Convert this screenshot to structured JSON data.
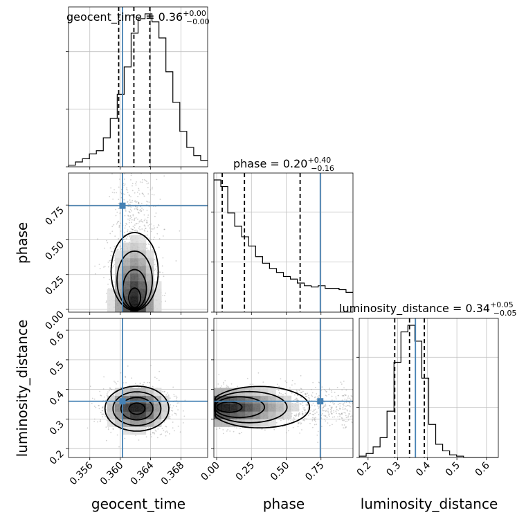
{
  "colors": {
    "truth": "#4682b4",
    "hist": "#000000",
    "grid": "#c0c0c0",
    "density": "#000000",
    "scatter": "#9a9a9a"
  },
  "chart_data": {
    "type": "corner",
    "grid": true,
    "parameters": [
      "geocent_time",
      "phase",
      "luminosity_distance"
    ],
    "titles": {
      "geocent_time": {
        "label": "geocent_time",
        "value": "0.36",
        "plus": "+0.00",
        "minus": "−0.00"
      },
      "phase": {
        "label": "phase",
        "value": "0.20",
        "plus": "+0.40",
        "minus": "−0.16"
      },
      "luminosity_distance": {
        "label": "luminosity_distance",
        "value": "0.34",
        "plus": "+0.05",
        "minus": "−0.05"
      }
    },
    "truths": {
      "geocent_time": 0.3603,
      "phase": 0.745,
      "luminosity_distance": 0.36
    },
    "quantiles": {
      "geocent_time": [
        0.3598,
        0.3618,
        0.3639
      ],
      "phase": [
        0.04,
        0.2,
        0.6
      ],
      "luminosity_distance": [
        0.29,
        0.34,
        0.39
      ]
    },
    "ranges": {
      "geocent_time": [
        0.3532,
        0.3715
      ],
      "phase": [
        -0.02,
        0.98
      ],
      "luminosity_distance": [
        0.17,
        0.64
      ]
    },
    "ticks": {
      "geocent_time": [
        0.356,
        0.36,
        0.364,
        0.368
      ],
      "phase": [
        0.0,
        0.25,
        0.5,
        0.75
      ],
      "luminosity_distance": [
        0.2,
        0.3,
        0.4,
        0.5,
        0.6
      ]
    },
    "tick_labels": {
      "geocent_time": [
        "0.356",
        "0.360",
        "0.364",
        "0.368"
      ],
      "phase": [
        "0.00",
        "0.25",
        "0.50",
        "0.75"
      ],
      "luminosity_distance": [
        "0.2",
        "0.3",
        "0.4",
        "0.5",
        "0.6"
      ]
    },
    "axis_labels": {
      "x": [
        "geocent_time",
        "phase",
        "luminosity_distance"
      ],
      "y": [
        "phase",
        "luminosity_distance"
      ]
    },
    "marginals": {
      "geocent_time": {
        "edges_start": 0.3532,
        "bin_width": 0.000915,
        "counts": [
          1,
          3,
          5,
          8,
          10,
          18,
          30,
          45,
          62,
          83,
          92,
          95,
          90,
          80,
          59,
          40,
          22,
          12,
          7,
          4
        ]
      },
      "phase": {
        "edges_start": -0.02,
        "bin_width": 0.05,
        "counts": [
          100,
          95,
          75,
          65,
          57,
          50,
          42,
          37,
          33,
          30,
          27,
          25,
          22,
          20,
          19,
          20,
          18,
          18,
          17,
          15
        ]
      },
      "luminosity_distance": {
        "edges_start": 0.17,
        "bin_width": 0.0235,
        "counts": [
          1,
          3,
          8,
          15,
          35,
          72,
          95,
          100,
          88,
          60,
          25,
          10,
          5,
          2,
          1,
          0,
          0,
          0,
          0,
          0
        ]
      }
    },
    "joint": [
      {
        "x": "geocent_time",
        "y": "phase",
        "x_center": 0.3619,
        "y_center": 0.02,
        "x_sd": 0.00155,
        "y_sd": 0.28,
        "note": "density concentrated at low phase, tail to phase 0.9"
      },
      {
        "x": "geocent_time",
        "y": "luminosity_distance",
        "x_center": 0.3622,
        "y_center": 0.335,
        "x_sd": 0.0021,
        "y_sd": 0.038
      },
      {
        "x": "phase",
        "y": "luminosity_distance",
        "x_center": 0.03,
        "y_center": 0.34,
        "x_sd": 0.3,
        "y_sd": 0.035
      }
    ]
  }
}
